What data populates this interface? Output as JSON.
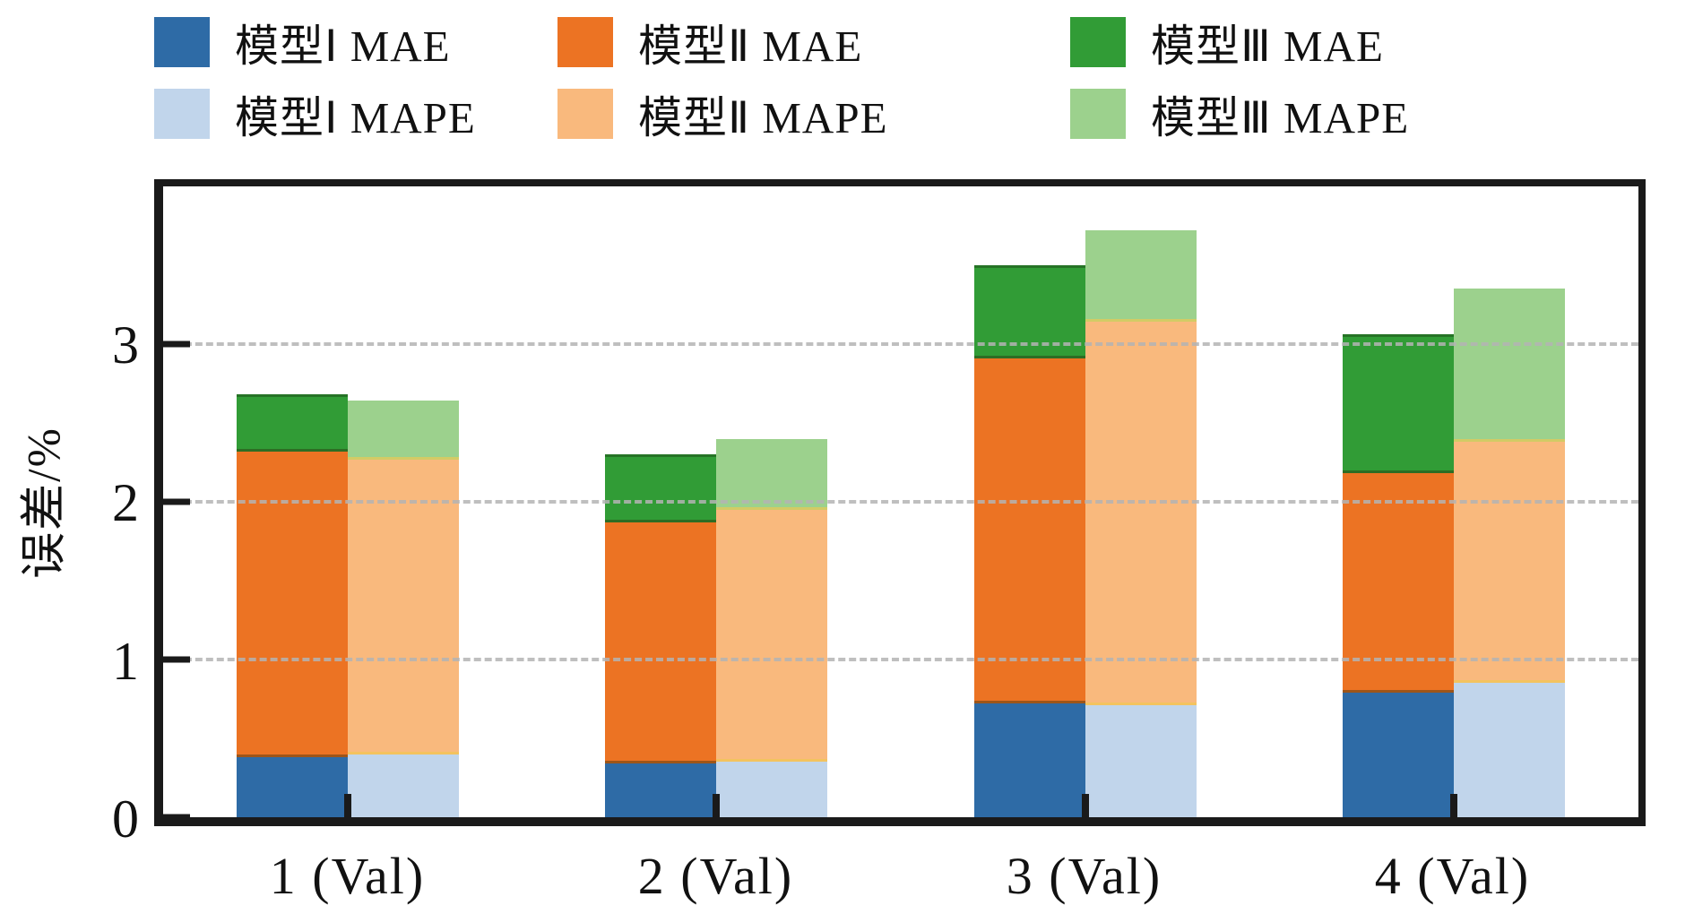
{
  "figure": {
    "background": "#ffffff",
    "frame_color": "#1a1a1a",
    "gridline_color": "#b4b4b4"
  },
  "legend": {
    "rows": [
      [
        {
          "label": "模型Ⅰ MAE",
          "color": "#2e6ba6"
        },
        {
          "label": "模型Ⅱ MAE",
          "color": "#ec7323"
        },
        {
          "label": "模型Ⅲ MAE",
          "color": "#319c36"
        }
      ],
      [
        {
          "label": "模型Ⅰ MAPE",
          "color": "#c1d5eb"
        },
        {
          "label": "模型Ⅱ MAPE",
          "color": "#f9b97d"
        },
        {
          "label": "模型Ⅲ MAPE",
          "color": "#9cd18d"
        }
      ]
    ]
  },
  "chart_data": {
    "type": "bar",
    "subtype": "stacked-grouped",
    "title": "",
    "xlabel": "",
    "ylabel": "误差/%",
    "ylim": [
      0,
      4
    ],
    "yticks": [
      0,
      1,
      2,
      3
    ],
    "gridlines": [
      1,
      2,
      3
    ],
    "grid": "dashed-horizontal",
    "legend_position": "top",
    "categories": [
      "1 (Val)",
      "2 (Val)",
      "3 (Val)",
      "4 (Val)"
    ],
    "stacks": [
      "MAE",
      "MAPE"
    ],
    "series": [
      {
        "name": "模型Ⅰ MAE",
        "stack": "MAE",
        "color": "#2e6ba6",
        "values": [
          0.38,
          0.34,
          0.72,
          0.79
        ]
      },
      {
        "name": "模型Ⅱ MAE",
        "stack": "MAE",
        "color": "#ec7323",
        "values": [
          1.94,
          1.53,
          2.19,
          1.39
        ]
      },
      {
        "name": "模型Ⅲ MAE",
        "stack": "MAE",
        "color": "#319c36",
        "values": [
          0.36,
          0.43,
          0.59,
          0.88
        ]
      },
      {
        "name": "模型Ⅰ MAPE",
        "stack": "MAPE",
        "color": "#c1d5eb",
        "values": [
          0.4,
          0.35,
          0.71,
          0.85
        ]
      },
      {
        "name": "模型Ⅱ MAPE",
        "stack": "MAPE",
        "color": "#f9b97d",
        "values": [
          1.87,
          1.6,
          2.43,
          1.53
        ]
      },
      {
        "name": "模型Ⅲ MAPE",
        "stack": "MAPE",
        "color": "#9cd18d",
        "values": [
          0.37,
          0.45,
          0.58,
          0.97
        ]
      }
    ],
    "stack_totals": {
      "MAE": [
        2.68,
        2.3,
        3.5,
        3.06
      ],
      "MAPE": [
        2.64,
        2.4,
        3.72,
        3.35
      ]
    }
  }
}
